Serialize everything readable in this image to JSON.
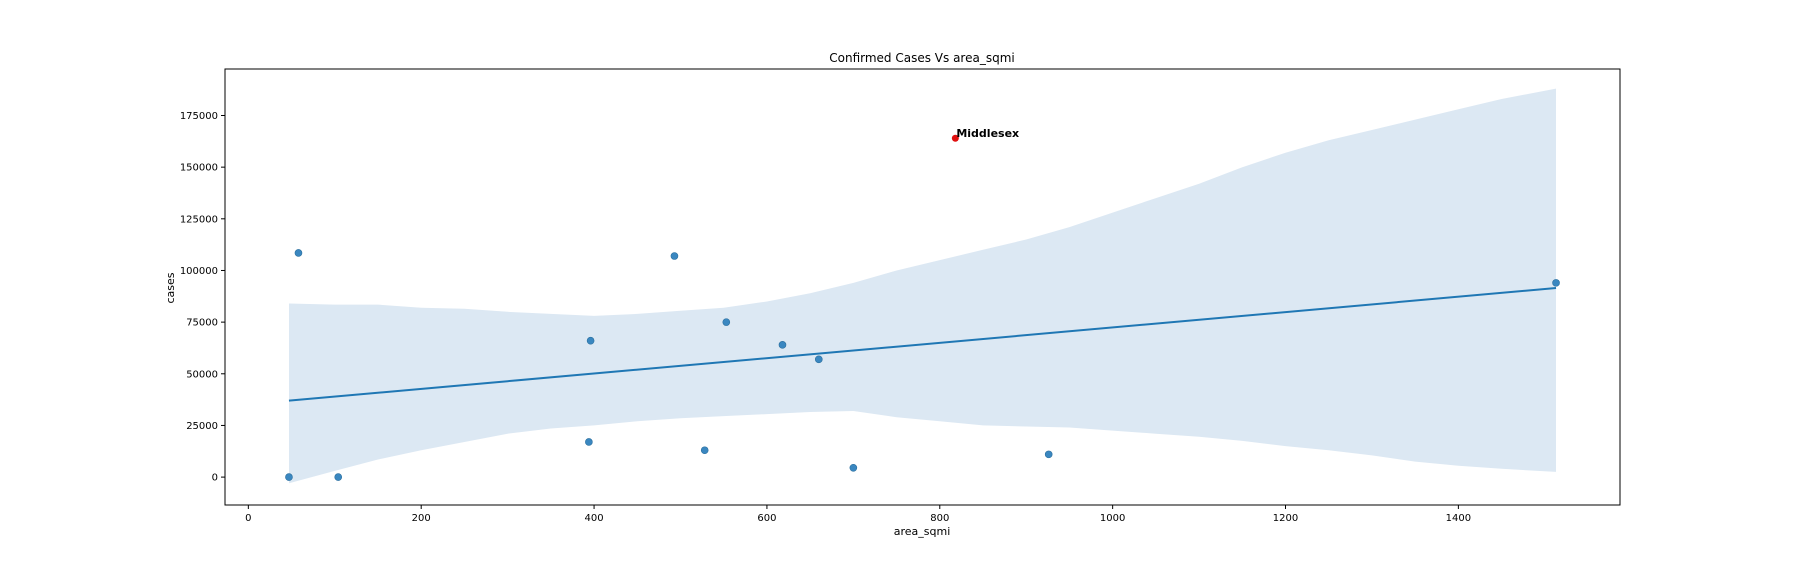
{
  "chart_data": {
    "type": "scatter",
    "title": "Confirmed Cases Vs area_sqmi",
    "xlabel": "area_sqmi",
    "ylabel": "cases",
    "xlim": [
      -27,
      1587
    ],
    "ylim": [
      -13500,
      197500
    ],
    "xticks": [
      0,
      200,
      400,
      600,
      800,
      1000,
      1200,
      1400
    ],
    "yticks": [
      0,
      25000,
      50000,
      75000,
      100000,
      125000,
      150000,
      175000
    ],
    "grid": false,
    "colors": {
      "points": "#3a87c0",
      "line": "#1f77b4",
      "band": "#dce8f3",
      "highlight": "#e01010"
    },
    "points": [
      {
        "x": 47,
        "y": 0
      },
      {
        "x": 58,
        "y": 108500
      },
      {
        "x": 104,
        "y": 0
      },
      {
        "x": 394,
        "y": 17000
      },
      {
        "x": 396,
        "y": 66000
      },
      {
        "x": 493,
        "y": 107000
      },
      {
        "x": 528,
        "y": 13000
      },
      {
        "x": 553,
        "y": 75000
      },
      {
        "x": 618,
        "y": 64000
      },
      {
        "x": 660,
        "y": 57000
      },
      {
        "x": 700,
        "y": 4500
      },
      {
        "x": 926,
        "y": 11000
      },
      {
        "x": 1513,
        "y": 94000
      }
    ],
    "highlight": {
      "label": "Middlesex",
      "x": 818,
      "y": 164000
    },
    "regression": {
      "x": [
        47,
        1513
      ],
      "y": [
        37000,
        91500
      ]
    },
    "ci_band": {
      "x": [
        47,
        100,
        150,
        200,
        250,
        300,
        350,
        400,
        450,
        500,
        550,
        600,
        650,
        700,
        750,
        800,
        850,
        900,
        950,
        1000,
        1050,
        1100,
        1150,
        1200,
        1250,
        1300,
        1350,
        1400,
        1450,
        1513
      ],
      "upper": [
        84000,
        83500,
        83500,
        82000,
        81500,
        80000,
        79000,
        78000,
        79000,
        80500,
        82000,
        85000,
        89000,
        94000,
        100000,
        105000,
        110000,
        115000,
        121000,
        128000,
        135000,
        142000,
        150000,
        157000,
        163000,
        168000,
        173000,
        178000,
        183000,
        188000
      ],
      "lower": [
        -3000,
        3000,
        8500,
        13000,
        17000,
        21000,
        23500,
        25000,
        27000,
        28500,
        29500,
        30500,
        31500,
        32000,
        29000,
        27000,
        25000,
        24500,
        24000,
        22500,
        21000,
        19500,
        17500,
        15000,
        13000,
        10500,
        7500,
        5500,
        4000,
        2500
      ]
    }
  }
}
